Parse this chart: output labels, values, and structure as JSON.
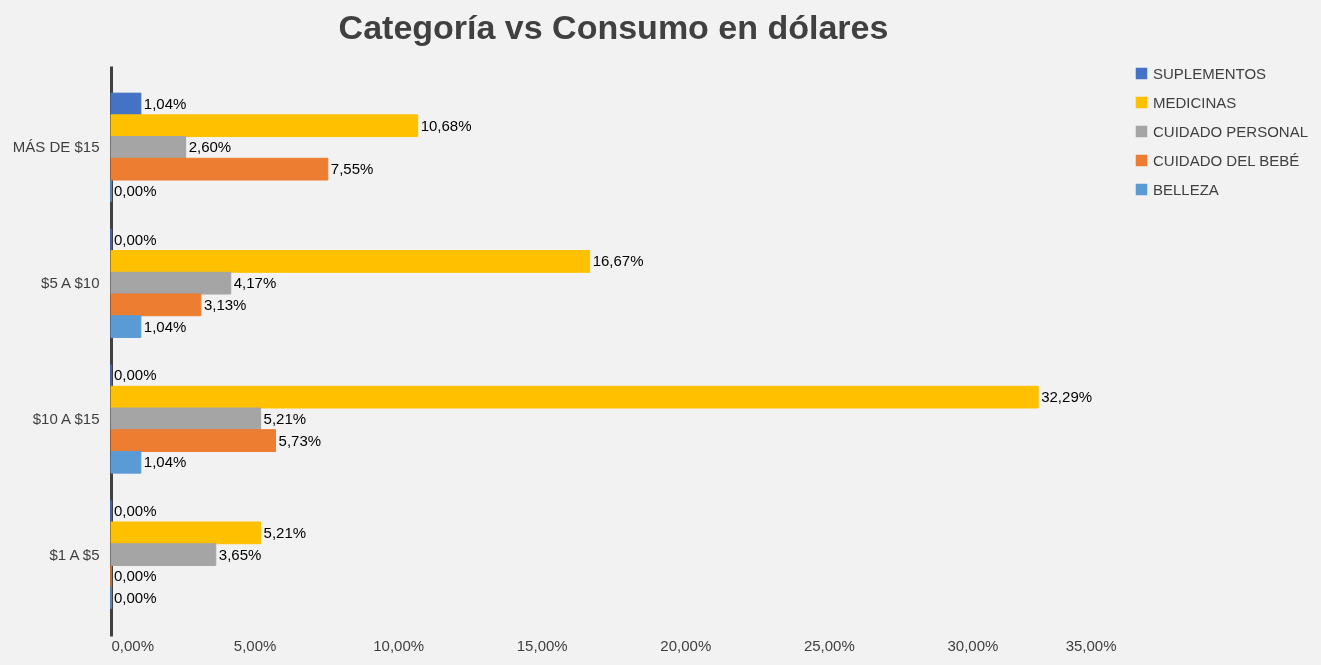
{
  "chart_data": {
    "type": "bar",
    "orientation": "horizontal",
    "title": "Categoría vs Consumo en dólares",
    "categories": [
      "MÁS DE $15",
      "$5 A $10",
      "$10 A $15",
      "$1 A $5"
    ],
    "series": [
      {
        "name": "SUPLEMENTOS",
        "color": "#4472c4",
        "values": [
          1.04,
          0.0,
          0.0,
          0.0
        ],
        "value_labels": [
          "1,04%",
          "0,00%",
          "0,00%",
          "0,00%"
        ]
      },
      {
        "name": "MEDICINAS",
        "color": "#ffc000",
        "values": [
          10.68,
          16.67,
          32.29,
          5.21
        ],
        "value_labels": [
          "10,68%",
          "16,67%",
          "32,29%",
          "5,21%"
        ]
      },
      {
        "name": "CUIDADO PERSONAL",
        "color": "#a5a5a5",
        "values": [
          2.6,
          4.17,
          5.21,
          3.65
        ],
        "value_labels": [
          "2,60%",
          "4,17%",
          "5,21%",
          "3,65%"
        ]
      },
      {
        "name": "CUIDADO DEL BEBÉ",
        "color": "#ed7d31",
        "values": [
          7.55,
          3.13,
          5.73,
          0.0
        ],
        "value_labels": [
          "7,55%",
          "3,13%",
          "5,73%",
          "0,00%"
        ]
      },
      {
        "name": "BELLEZA",
        "color": "#5b9bd5",
        "values": [
          0.0,
          1.04,
          1.04,
          0.0
        ],
        "value_labels": [
          "0,00%",
          "1,04%",
          "1,04%",
          "0,00%"
        ]
      }
    ],
    "xlim": [
      0,
      35
    ],
    "xticks": [
      {
        "value": 0,
        "label": "0,00%"
      },
      {
        "value": 5,
        "label": "5,00%"
      },
      {
        "value": 10,
        "label": "10,00%"
      },
      {
        "value": 15,
        "label": "15,00%"
      },
      {
        "value": 20,
        "label": "20,00%"
      },
      {
        "value": 25,
        "label": "25,00%"
      },
      {
        "value": 30,
        "label": "30,00%"
      },
      {
        "value": 35,
        "label": "35,00%"
      }
    ],
    "grid": false,
    "legend": "right"
  }
}
